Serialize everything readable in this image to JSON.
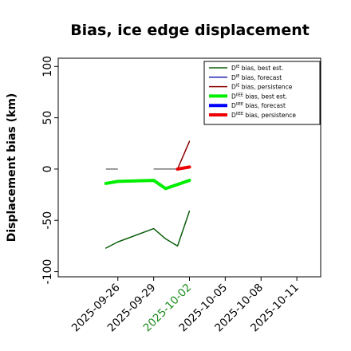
{
  "chart_data": {
    "type": "line",
    "title": "Bias, ice edge displacement",
    "ylabel": "Displacement bias (km)",
    "xlabel": "",
    "ylim": [
      -105,
      108
    ],
    "yticks": [
      -100,
      -50,
      0,
      50,
      100
    ],
    "xticks": [
      "2025-09-26",
      "2025-09-29",
      "2025-10-02",
      "2025-10-05",
      "2025-10-08",
      "2025-10-11"
    ],
    "highlighted_tick": "2025-10-02",
    "highlight_color": "#1a8a1a",
    "legend_position": "upper-right",
    "grid": false,
    "series": [
      {
        "name": "D^IE bias, best est.",
        "color": "#0b5e0b",
        "width": 1.5,
        "points": [
          [
            "2025-09-25",
            -77
          ],
          [
            "2025-09-26",
            -71
          ],
          [
            "2025-09-29",
            -58
          ],
          [
            "2025-09-30",
            -68
          ],
          [
            "2025-10-01",
            -75
          ],
          [
            "2025-10-02",
            -41
          ]
        ]
      },
      {
        "name": "D^IE bias, forecast",
        "color": "#1f1fb4",
        "width": 1.5,
        "points": []
      },
      {
        "name": "D^IE bias, persistence",
        "color": "#8b0000",
        "width": 1.5,
        "points": [
          [
            "2025-10-01",
            0
          ],
          [
            "2025-10-02",
            27
          ]
        ]
      },
      {
        "name": "D^IIEE bias, best est.",
        "color": "#00ee00",
        "width": 4,
        "points": [
          [
            "2025-09-25",
            -14
          ],
          [
            "2025-09-26",
            -12
          ],
          [
            "2025-09-29",
            -11
          ],
          [
            "2025-09-30",
            -19
          ],
          [
            "2025-10-01",
            -15
          ],
          [
            "2025-10-02",
            -11
          ]
        ]
      },
      {
        "name": "D^IIEE bias, forecast",
        "color": "#0000ff",
        "width": 4,
        "points": []
      },
      {
        "name": "D^IIEE bias, persistence",
        "color": "#ee0000",
        "width": 4,
        "points": [
          [
            "2025-10-01",
            0
          ],
          [
            "2025-10-02",
            2
          ]
        ]
      }
    ],
    "zero_segments": [
      {
        "color": "#777777",
        "points": [
          [
            "2025-09-25",
            0
          ],
          [
            "2025-09-26",
            0
          ]
        ]
      },
      {
        "color": "#777777",
        "points": [
          [
            "2025-09-29",
            0
          ],
          [
            "2025-10-01",
            0
          ]
        ]
      }
    ]
  }
}
